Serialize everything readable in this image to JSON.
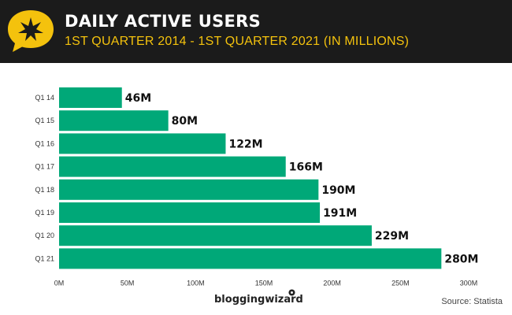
{
  "header": {
    "title": "DAILY ACTIVE USERS",
    "subtitle": "1ST QUARTER 2014 - 1ST QUARTER 2021 (IN MILLIONS)",
    "badge_icon": "star-speech-bubble-icon",
    "badge_color": "#f4c20d"
  },
  "chart_data": {
    "type": "bar",
    "orientation": "horizontal",
    "title": "DAILY ACTIVE USERS",
    "subtitle": "1ST QUARTER 2014 - 1ST QUARTER 2021 (IN MILLIONS)",
    "categories": [
      "Q1 14",
      "Q1 15",
      "Q1 16",
      "Q1 17",
      "Q1 18",
      "Q1 19",
      "Q1 20",
      "Q1 21"
    ],
    "values": [
      46,
      80,
      122,
      166,
      190,
      191,
      229,
      280
    ],
    "data_labels": [
      "46M",
      "80M",
      "122M",
      "166M",
      "190M",
      "191M",
      "229M",
      "280M"
    ],
    "xlim": [
      0,
      300
    ],
    "x_ticks": [
      0,
      50,
      100,
      150,
      200,
      250,
      300
    ],
    "x_tick_labels": [
      "0M",
      "50M",
      "100M",
      "150M",
      "200M",
      "250M",
      "300M"
    ],
    "bar_color": "#00a878",
    "grid": false,
    "legend": "none"
  },
  "footer": {
    "brand": "bloggingwizard",
    "source": "Source: Statista",
    "brand_icon": "pin-dot-icon"
  }
}
